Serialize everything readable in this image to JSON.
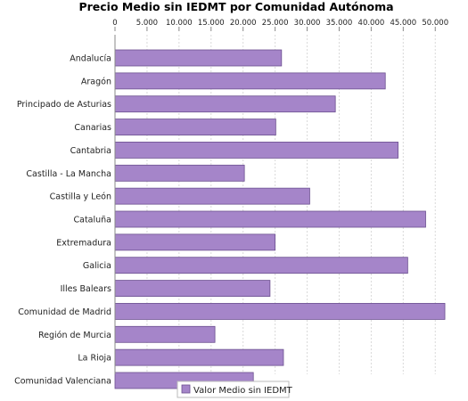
{
  "chart_data": {
    "type": "bar",
    "orientation": "horizontal",
    "title": "Precio Medio sin IEDMT por Comunidad Autónoma",
    "xlabel": "",
    "ylabel": "",
    "xlim": [
      0,
      54000
    ],
    "tick_values": [
      0,
      5000,
      10000,
      15000,
      20000,
      25000,
      30000,
      35000,
      40000,
      45000,
      50000
    ],
    "tick_labels": [
      "0",
      "5.000",
      "10.000",
      "15.000",
      "20.000",
      "25.000",
      "30.000",
      "35.000",
      "40.000",
      "45.000",
      "50.000"
    ],
    "axis_position": "top",
    "grid": true,
    "legend_position": "bottom",
    "categories": [
      "Andalucía",
      "Aragón",
      "Principado de Asturias",
      "Canarias",
      "Cantabria",
      "Castilla - La Mancha",
      "Castilla y León",
      "Cataluña",
      "Extremadura",
      "Galicia",
      "Illes Balears",
      "Comunidad de Madrid",
      "Región de Murcia",
      "La Rioja",
      "Comunidad Valenciana"
    ],
    "series": [
      {
        "name": "Valor Medio sin IEDMT",
        "color": "#a585c9",
        "values": [
          26000,
          42200,
          34400,
          25100,
          44200,
          20200,
          30400,
          48500,
          25000,
          45700,
          24200,
          51500,
          15600,
          26300,
          21600
        ]
      }
    ]
  }
}
